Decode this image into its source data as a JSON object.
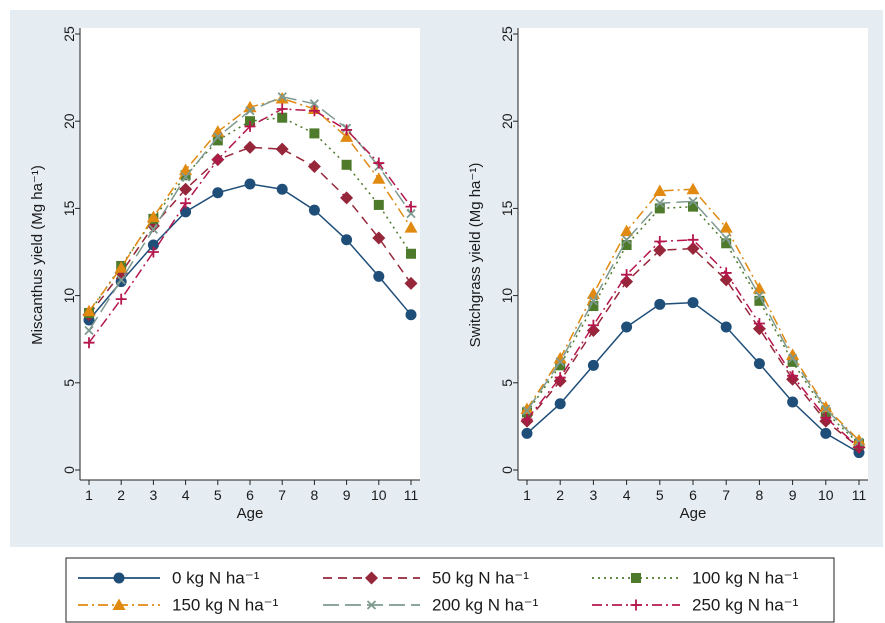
{
  "chart_data": [
    {
      "type": "line",
      "xlabel": "Age",
      "ylabel": "Miscanthus yield (Mg ha⁻¹)",
      "x": [
        1,
        2,
        3,
        4,
        5,
        6,
        7,
        8,
        9,
        10,
        11
      ],
      "xlim": [
        1,
        11
      ],
      "ylim": [
        0,
        25
      ],
      "yticks": [
        0,
        5,
        10,
        15,
        20,
        25
      ],
      "grid": false,
      "series": [
        {
          "name": "0 kg N ha⁻¹",
          "values": [
            8.6,
            10.8,
            12.9,
            14.8,
            15.9,
            16.4,
            16.1,
            14.9,
            13.2,
            11.1,
            8.9
          ]
        },
        {
          "name": "50 kg N ha⁻¹",
          "values": [
            8.9,
            11.3,
            14.0,
            16.1,
            17.8,
            18.5,
            18.4,
            17.4,
            15.6,
            13.3,
            10.7
          ]
        },
        {
          "name": "100 kg N ha⁻¹",
          "values": [
            9.0,
            11.7,
            14.4,
            16.9,
            18.9,
            20.0,
            20.2,
            19.3,
            17.5,
            15.2,
            12.4
          ]
        },
        {
          "name": "150 kg N ha⁻¹",
          "values": [
            9.1,
            11.6,
            14.5,
            17.2,
            19.4,
            20.8,
            21.3,
            20.7,
            19.1,
            16.7,
            13.9
          ]
        },
        {
          "name": "200 kg N ha⁻¹",
          "values": [
            8.0,
            10.9,
            13.8,
            16.8,
            19.1,
            20.6,
            21.4,
            21.0,
            19.6,
            17.4,
            14.7
          ]
        },
        {
          "name": "250 kg N ha⁻¹",
          "values": [
            7.3,
            9.8,
            12.5,
            15.3,
            17.8,
            19.7,
            20.7,
            20.6,
            19.5,
            17.6,
            15.1
          ]
        }
      ]
    },
    {
      "type": "line",
      "xlabel": "Age",
      "ylabel": "Switchgrass yield (Mg ha⁻¹)",
      "x": [
        1,
        2,
        3,
        4,
        5,
        6,
        7,
        8,
        9,
        10,
        11
      ],
      "xlim": [
        1,
        11
      ],
      "ylim": [
        0,
        25
      ],
      "yticks": [
        0,
        5,
        10,
        15,
        20,
        25
      ],
      "grid": false,
      "series": [
        {
          "name": "0 kg N ha⁻¹",
          "values": [
            2.1,
            3.8,
            6.0,
            8.2,
            9.5,
            9.6,
            8.2,
            6.1,
            3.9,
            2.1,
            1.0
          ]
        },
        {
          "name": "50 kg N ha⁻¹",
          "values": [
            2.8,
            5.1,
            8.0,
            10.8,
            12.6,
            12.7,
            10.9,
            8.1,
            5.2,
            2.8,
            1.3
          ]
        },
        {
          "name": "100 kg N ha⁻¹",
          "values": [
            3.3,
            6.0,
            9.4,
            12.9,
            15.0,
            15.1,
            13.0,
            9.7,
            6.2,
            3.3,
            1.5
          ]
        },
        {
          "name": "150 kg N ha⁻¹",
          "values": [
            3.5,
            6.4,
            10.1,
            13.7,
            16.0,
            16.1,
            13.9,
            10.4,
            6.6,
            3.6,
            1.7
          ]
        },
        {
          "name": "200 kg N ha⁻¹",
          "values": [
            3.4,
            6.2,
            9.7,
            13.2,
            15.3,
            15.4,
            13.3,
            10.0,
            6.4,
            3.5,
            1.6
          ]
        },
        {
          "name": "250 kg N ha⁻¹",
          "values": [
            2.9,
            5.3,
            8.3,
            11.2,
            13.1,
            13.2,
            11.3,
            8.4,
            5.4,
            3.0,
            1.3
          ]
        }
      ]
    }
  ],
  "legend": {
    "placement": "bottom",
    "items": [
      {
        "label": "0 kg N ha⁻¹",
        "color": "#1f4e79",
        "marker": "circle",
        "dash": "solid"
      },
      {
        "label": "50 kg N ha⁻¹",
        "color": "#96263a",
        "marker": "diamond",
        "dash": "dash"
      },
      {
        "label": "100 kg N ha⁻¹",
        "color": "#4e7a2b",
        "marker": "square",
        "dash": "dot"
      },
      {
        "label": "150 kg N ha⁻¹",
        "color": "#e08a12",
        "marker": "triangle",
        "dash": "dashdot"
      },
      {
        "label": "200 kg N ha⁻¹",
        "color": "#7e9a8f",
        "marker": "x",
        "dash": "longdash"
      },
      {
        "label": "250 kg N ha⁻¹",
        "color": "#b5174d",
        "marker": "plus",
        "dash": "dashdot"
      }
    ]
  },
  "colors": {
    "panel_background": "#e5edf3",
    "plot_background": "#ffffff",
    "axis": "#222222"
  }
}
